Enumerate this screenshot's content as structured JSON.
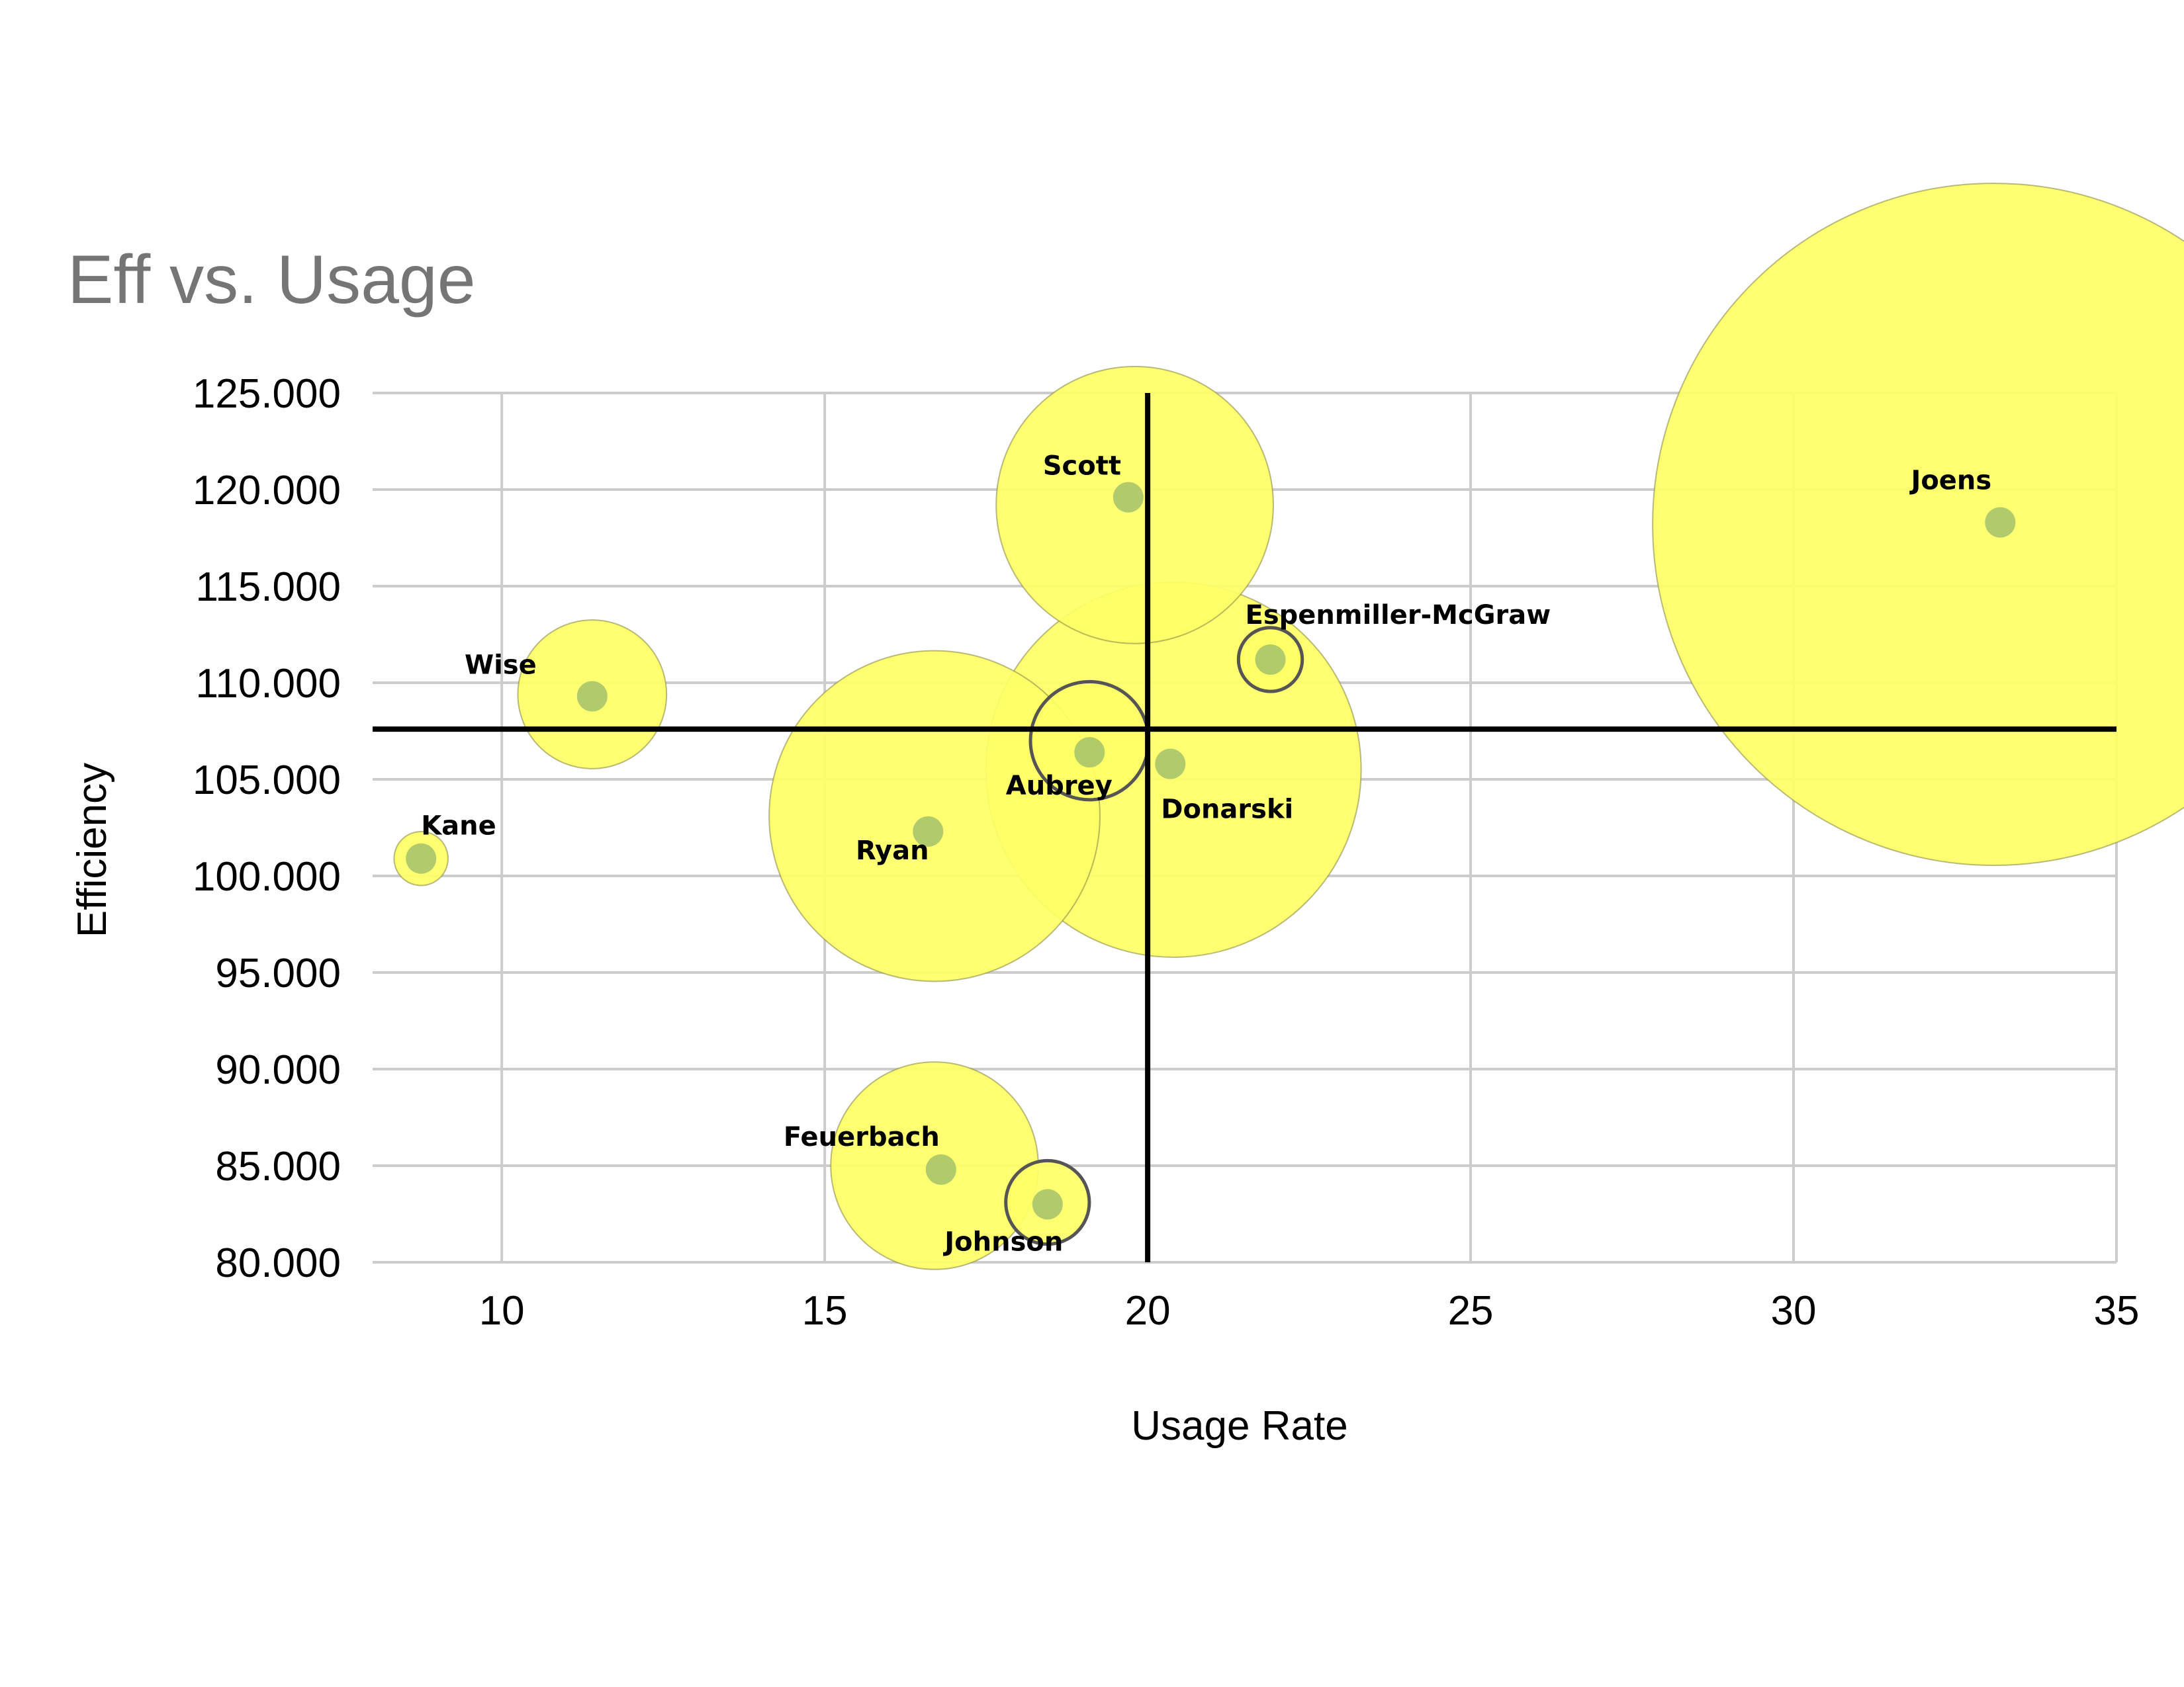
{
  "chart_data": {
    "type": "bubble",
    "title": "Eff vs. Usage",
    "xlabel": "Usage Rate",
    "ylabel": "Efficiency",
    "xlim": [
      8,
      35
    ],
    "ylim": [
      80,
      125
    ],
    "xticks": [
      "10",
      "15",
      "20",
      "25",
      "30",
      "35"
    ],
    "yticks": [
      "80.000",
      "85.000",
      "90.000",
      "95.000",
      "100.000",
      "105.000",
      "110.000",
      "115.000",
      "120.000",
      "125.000"
    ],
    "grid": true,
    "reference_lines": {
      "x": 20,
      "y": 107.6
    },
    "bubble_color": "#ffff66",
    "marker_color": "#a9c46a",
    "points": [
      {
        "name": "Joens",
        "usage": 33.2,
        "efficiency": 118.3,
        "x_center": 33.1,
        "y_center": 118.2,
        "size": 40.0,
        "marker": false
      },
      {
        "name": "Scott",
        "usage": 19.7,
        "efficiency": 119.6,
        "x_center": 19.8,
        "y_center": 119.2,
        "size": 6.6,
        "marker": false
      },
      {
        "name": "Espenmiller-McGraw",
        "usage": 21.9,
        "efficiency": 111.2,
        "x_center": 21.9,
        "y_center": 111.2,
        "size": 0.35,
        "marker": true
      },
      {
        "name": "Wise",
        "usage": 11.4,
        "efficiency": 109.3,
        "x_center": 11.4,
        "y_center": 109.4,
        "size": 1.9,
        "marker": false
      },
      {
        "name": "Aubrey",
        "usage": 19.1,
        "efficiency": 106.4,
        "x_center": 19.1,
        "y_center": 107.0,
        "size": 1.2,
        "marker": true
      },
      {
        "name": "Donarski",
        "usage": 20.35,
        "efficiency": 105.8,
        "x_center": 20.4,
        "y_center": 105.5,
        "size": 12.1,
        "marker": false
      },
      {
        "name": "Ryan",
        "usage": 16.6,
        "efficiency": 102.3,
        "x_center": 16.7,
        "y_center": 103.1,
        "size": 9.4,
        "marker": false
      },
      {
        "name": "Kane",
        "usage": 8.75,
        "efficiency": 100.9,
        "x_center": 8.75,
        "y_center": 100.9,
        "size": 0.25,
        "marker": false
      },
      {
        "name": "Feuerbach",
        "usage": 16.8,
        "efficiency": 84.8,
        "x_center": 16.7,
        "y_center": 85.0,
        "size": 3.7,
        "marker": false
      },
      {
        "name": "Johnson",
        "usage": 18.45,
        "efficiency": 83.0,
        "x_center": 18.45,
        "y_center": 83.1,
        "size": 0.6,
        "marker": true
      }
    ]
  }
}
